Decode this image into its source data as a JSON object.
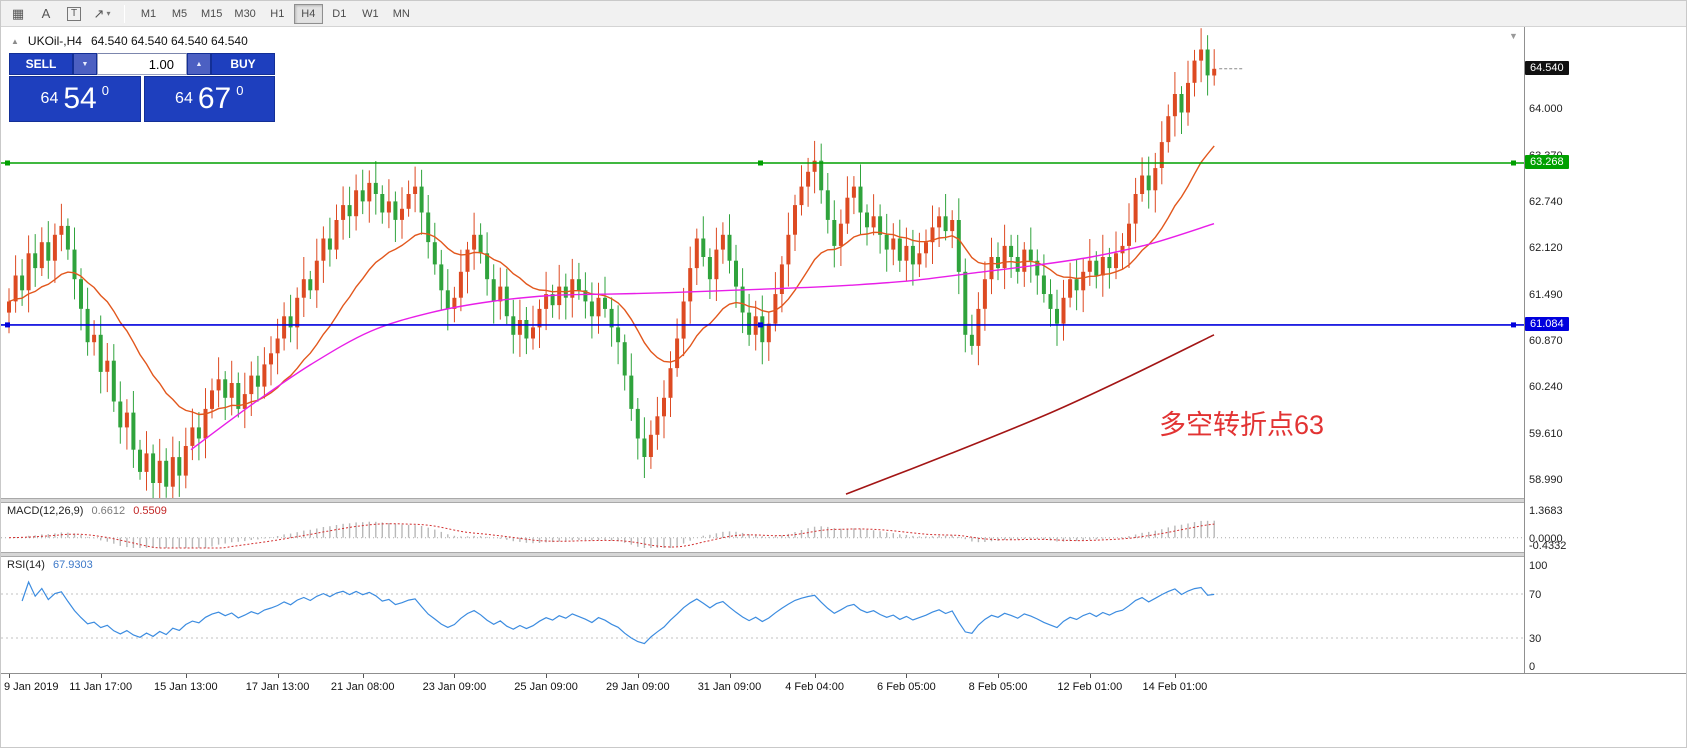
{
  "toolbar": {
    "icons": {
      "pattern": "▦",
      "text": "A",
      "frame": "T",
      "draw": "↗",
      "caret": "▾"
    },
    "timeframes": [
      "M1",
      "M5",
      "M15",
      "M30",
      "H1",
      "H4",
      "D1",
      "W1",
      "MN"
    ],
    "active_timeframe": "H4"
  },
  "trade_panel": {
    "sell_label": "SELL",
    "buy_label": "BUY",
    "volume": "1.00",
    "sell_base": "64",
    "sell_pips": "54",
    "sell_sup": "0",
    "buy_base": "64",
    "buy_pips": "67",
    "buy_sup": "0",
    "accent_color": "#1e3fbe"
  },
  "chart": {
    "title": "UKOil-,H4",
    "ohlc": "64.540 64.540 64.540 64.540",
    "annotation": "多空转折点63"
  },
  "chart_data": {
    "type": "candlestick",
    "symbol": "UKOil-",
    "timeframe": "H4",
    "first_open": 61.25,
    "closes": [
      61.4,
      61.75,
      61.55,
      62.05,
      61.85,
      62.2,
      61.95,
      62.3,
      62.42,
      62.1,
      61.7,
      61.3,
      60.85,
      60.95,
      60.45,
      60.6,
      60.05,
      59.7,
      59.9,
      59.4,
      59.1,
      59.35,
      58.95,
      59.25,
      58.9,
      59.3,
      59.05,
      59.45,
      59.7,
      59.55,
      59.95,
      60.2,
      60.35,
      60.1,
      60.3,
      59.95,
      60.15,
      60.4,
      60.25,
      60.55,
      60.7,
      60.9,
      61.2,
      61.05,
      61.45,
      61.7,
      61.55,
      61.95,
      62.25,
      62.1,
      62.5,
      62.7,
      62.55,
      62.9,
      62.75,
      63.0,
      62.85,
      62.6,
      62.75,
      62.5,
      62.65,
      62.85,
      62.95,
      62.6,
      62.2,
      61.9,
      61.55,
      61.3,
      61.45,
      61.8,
      62.1,
      62.3,
      62.05,
      61.7,
      61.4,
      61.6,
      61.2,
      60.95,
      61.15,
      60.9,
      61.05,
      61.3,
      61.5,
      61.35,
      61.6,
      61.45,
      61.7,
      61.55,
      61.4,
      61.2,
      61.45,
      61.3,
      61.05,
      60.85,
      60.4,
      59.95,
      59.55,
      59.3,
      59.6,
      59.85,
      60.1,
      60.5,
      60.9,
      61.4,
      61.85,
      62.25,
      62.0,
      61.7,
      62.1,
      62.3,
      61.95,
      61.6,
      61.25,
      60.95,
      61.2,
      60.85,
      61.1,
      61.5,
      61.9,
      62.3,
      62.7,
      62.95,
      63.15,
      63.3,
      62.9,
      62.5,
      62.15,
      62.45,
      62.8,
      62.95,
      62.6,
      62.4,
      62.55,
      62.3,
      62.1,
      62.25,
      61.95,
      62.15,
      61.9,
      62.05,
      62.2,
      62.4,
      62.55,
      62.35,
      62.5,
      61.8,
      60.95,
      60.8,
      61.3,
      61.7,
      62.0,
      61.85,
      62.15,
      62.0,
      61.8,
      62.1,
      61.95,
      61.75,
      61.5,
      61.3,
      61.1,
      61.45,
      61.7,
      61.55,
      61.8,
      61.95,
      61.75,
      62.0,
      61.85,
      62.05,
      62.15,
      62.45,
      62.85,
      63.1,
      62.9,
      63.2,
      63.55,
      63.9,
      64.2,
      63.95,
      64.35,
      64.65,
      64.8,
      64.45,
      64.54
    ],
    "colors": {
      "up": "#dd4a22",
      "down": "#2fa33c"
    },
    "ma_fast": {
      "type": "EMA",
      "period": 20,
      "color": "#e2571d"
    },
    "ma_slow": {
      "color": "#e81ee8",
      "points": [
        [
          190,
          59.4
        ],
        [
          250,
          60.0
        ],
        [
          310,
          60.55
        ],
        [
          370,
          61.0
        ],
        [
          430,
          61.25
        ],
        [
          490,
          61.4
        ],
        [
          550,
          61.48
        ],
        [
          610,
          61.5
        ],
        [
          670,
          61.52
        ],
        [
          730,
          61.55
        ],
        [
          790,
          61.58
        ],
        [
          850,
          61.62
        ],
        [
          910,
          61.68
        ],
        [
          970,
          61.78
        ],
        [
          1030,
          61.88
        ],
        [
          1090,
          62.0
        ],
        [
          1150,
          62.18
        ],
        [
          1213,
          62.45
        ]
      ]
    },
    "trendline": {
      "color": "#a31515",
      "points": [
        [
          845,
          58.8
        ],
        [
          950,
          59.35
        ],
        [
          1050,
          59.9
        ],
        [
          1130,
          60.4
        ],
        [
          1213,
          60.95
        ]
      ]
    },
    "hlines": [
      {
        "price": 63.268,
        "label": "63.268",
        "color": "#00a000"
      },
      {
        "price": 61.084,
        "label": "61.084",
        "color": "#0000dd"
      }
    ],
    "bid": {
      "price": 64.54,
      "label": "64.540",
      "bg": "#111111"
    },
    "price_axis": {
      "min": 58.75,
      "max": 65.05,
      "labels": [
        "64.000",
        "63.370",
        "62.740",
        "62.120",
        "61.490",
        "60.870",
        "60.240",
        "59.610",
        "58.990"
      ]
    },
    "time_axis": [
      {
        "label": "9 Jan 2019",
        "i": 0
      },
      {
        "label": "11 Jan 17:00",
        "i": 14
      },
      {
        "label": "15 Jan 13:00",
        "i": 27
      },
      {
        "label": "17 Jan 13:00",
        "i": 41
      },
      {
        "label": "21 Jan 08:00",
        "i": 54
      },
      {
        "label": "23 Jan 09:00",
        "i": 68
      },
      {
        "label": "25 Jan 09:00",
        "i": 82
      },
      {
        "label": "29 Jan 09:00",
        "i": 96
      },
      {
        "label": "31 Jan 09:00",
        "i": 110
      },
      {
        "label": "4 Feb 04:00",
        "i": 123
      },
      {
        "label": "6 Feb 05:00",
        "i": 137
      },
      {
        "label": "8 Feb 05:00",
        "i": 151
      },
      {
        "label": "12 Feb 01:00",
        "i": 165
      },
      {
        "label": "14 Feb 01:00",
        "i": 178
      }
    ],
    "macd": {
      "name": "MACD(12,26,9)",
      "value_main": "0.6612",
      "value_signal": "0.5509",
      "max": 1.3683,
      "min": -0.4332,
      "scale_labels": [
        "1.3683",
        "0.0000",
        "-0.4332"
      ],
      "hist_color": "#b8b8b8",
      "signal_color": "#d23030"
    },
    "rsi": {
      "name": "RSI(14)",
      "value": "67.9303",
      "color": "#3c8ce0",
      "levels": [
        100,
        70,
        30,
        0
      ],
      "level_lines": [
        70,
        30
      ]
    }
  }
}
